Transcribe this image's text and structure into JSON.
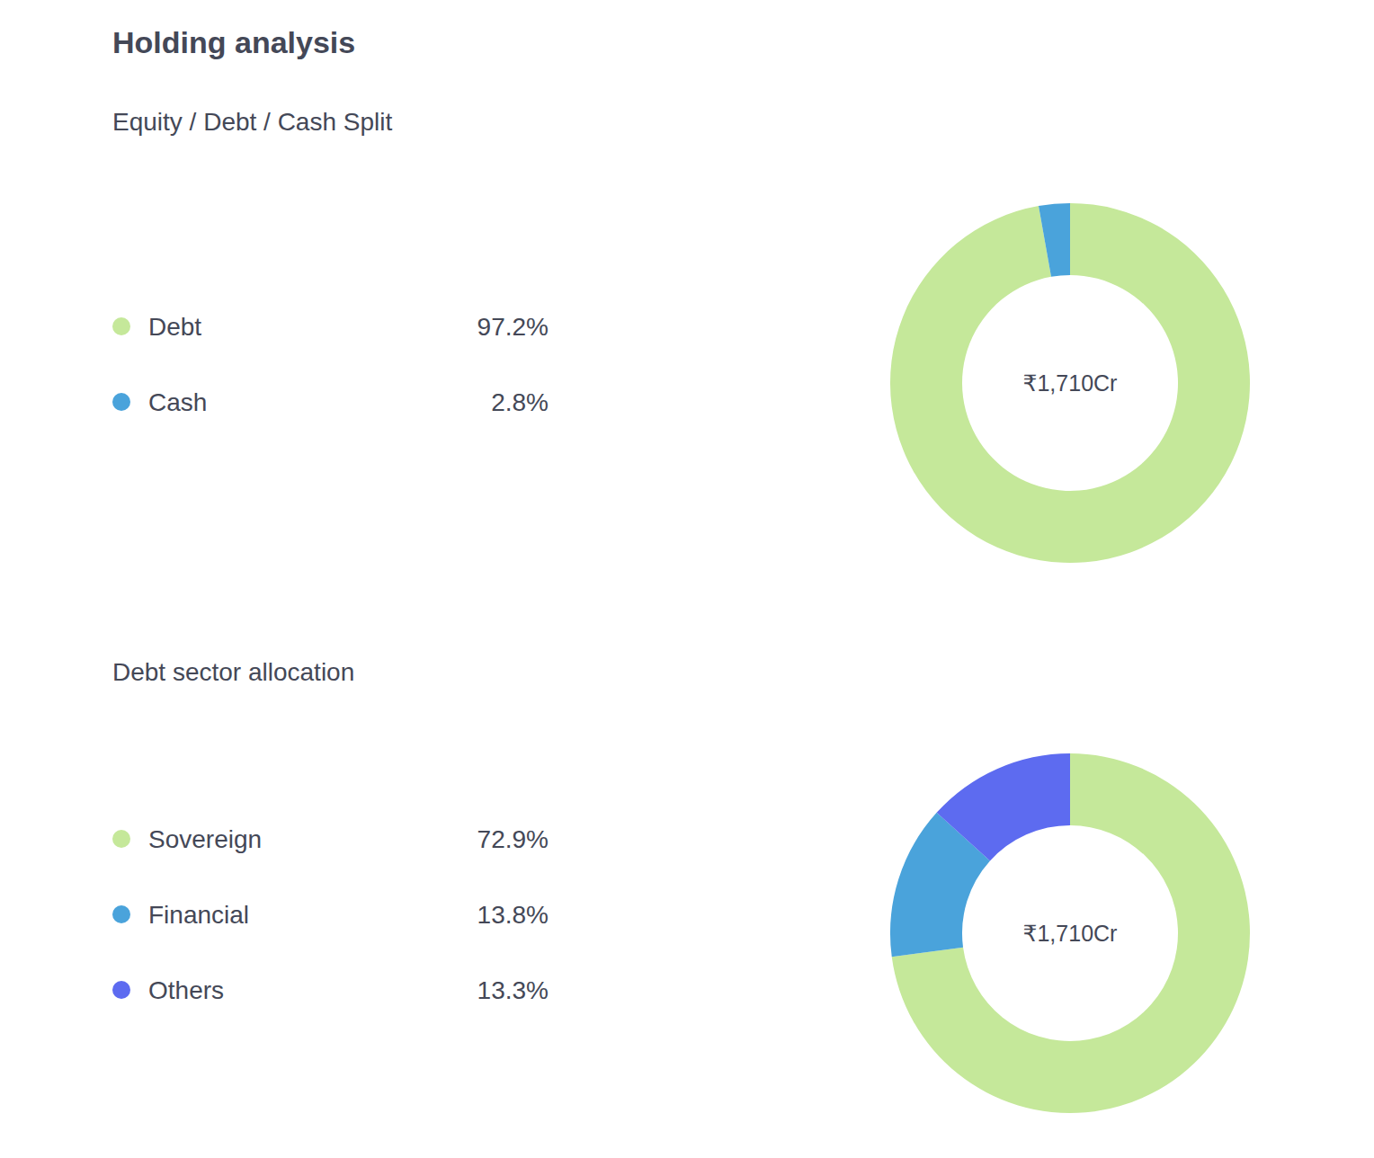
{
  "heading": "Holding analysis",
  "chart_data": [
    {
      "type": "donut",
      "title": "Equity / Debt / Cash Split",
      "categories": [
        "Debt",
        "Cash"
      ],
      "values": [
        97.2,
        2.8
      ],
      "value_labels": [
        "97.2%",
        "2.8%"
      ],
      "colors": [
        "#c5e89a",
        "#4aa3db"
      ],
      "center_label": "₹1,710Cr",
      "legend": "left"
    },
    {
      "type": "donut",
      "title": "Debt sector allocation",
      "categories": [
        "Sovereign",
        "Financial",
        "Others"
      ],
      "values": [
        72.9,
        13.8,
        13.3
      ],
      "value_labels": [
        "72.9%",
        "13.8%",
        "13.3%"
      ],
      "colors": [
        "#c5e89a",
        "#4aa3db",
        "#5d6bf0"
      ],
      "center_label": "₹1,710Cr",
      "legend": "left"
    }
  ]
}
